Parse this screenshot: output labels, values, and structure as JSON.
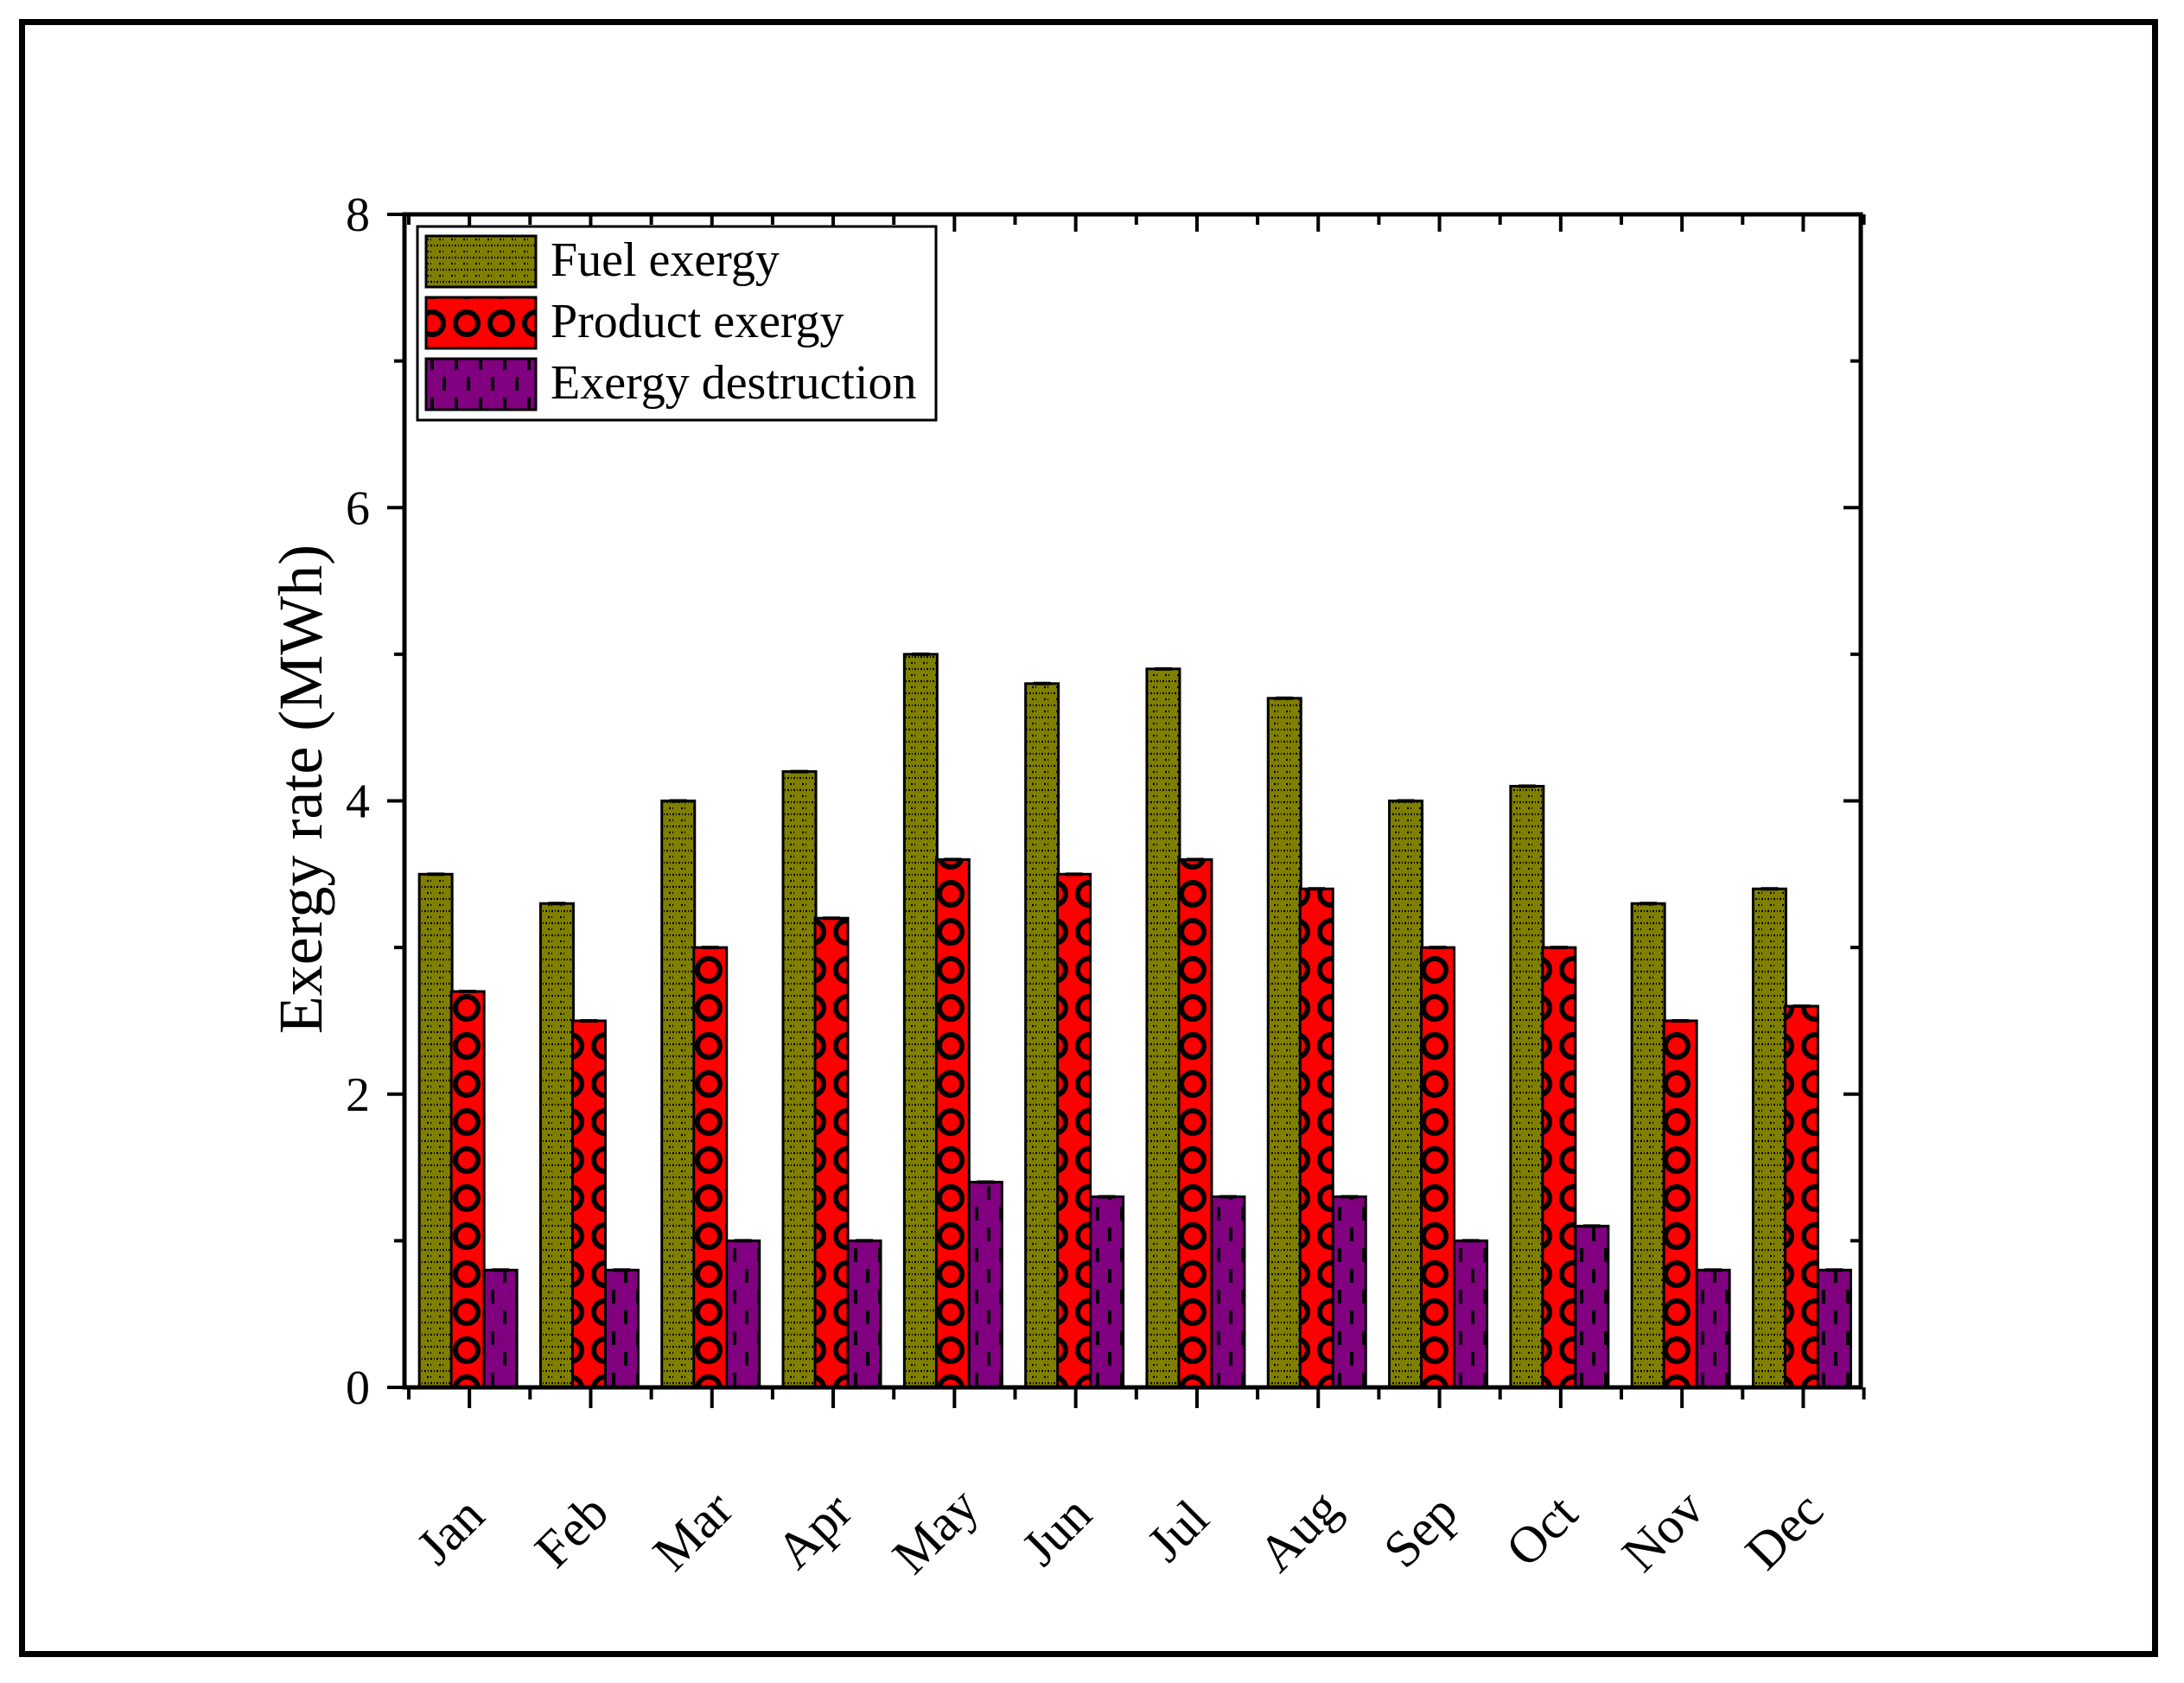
{
  "chart_data": {
    "type": "bar",
    "title": "",
    "xlabel": "",
    "ylabel": "Exergy rate (MWh)",
    "ylim": [
      0,
      8
    ],
    "yticks": [
      "0",
      "2",
      "4",
      "6",
      "8"
    ],
    "categories": [
      "Jan",
      "Feb",
      "Mar",
      "Apr",
      "May",
      "Jun",
      "Jul",
      "Aug",
      "Sep",
      "Oct",
      "Nov",
      "Dec"
    ],
    "series": [
      {
        "name": "Fuel exergy",
        "color": "#808000",
        "pattern": "dots",
        "values": [
          3.5,
          3.3,
          4.0,
          4.2,
          5.0,
          4.8,
          4.9,
          4.7,
          4.0,
          4.1,
          3.3,
          3.4
        ]
      },
      {
        "name": "Product exergy",
        "color": "#ff0000",
        "pattern": "circles",
        "values": [
          2.7,
          2.5,
          3.0,
          3.2,
          3.6,
          3.5,
          3.6,
          3.4,
          3.0,
          3.0,
          2.5,
          2.6
        ]
      },
      {
        "name": "Exergy destruction",
        "color": "#800080",
        "pattern": "dashes",
        "values": [
          0.8,
          0.8,
          1.0,
          1.0,
          1.4,
          1.3,
          1.3,
          1.3,
          1.0,
          1.1,
          0.8,
          0.8
        ]
      }
    ],
    "legend": "top-left",
    "grid": false
  }
}
